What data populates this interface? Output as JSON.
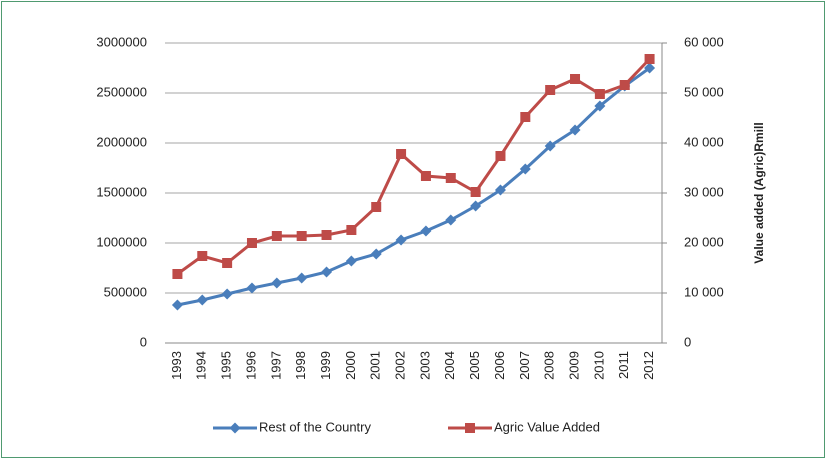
{
  "chart_data": {
    "type": "line",
    "y2label": "Value added (Agric)Rmill",
    "categories": [
      "1993",
      "1994",
      "1995",
      "1996",
      "1997",
      "1998",
      "1999",
      "2000",
      "2001",
      "2002",
      "2003",
      "2004",
      "2005",
      "2006",
      "2007",
      "2008",
      "2009",
      "2010",
      "2011",
      "2012"
    ],
    "series": [
      {
        "name": "Rest of the Country",
        "color": "#4a7ebb",
        "marker": "diamond",
        "values": [
          380000,
          430000,
          490000,
          550000,
          600000,
          650000,
          710000,
          820000,
          890000,
          1030000,
          1120000,
          1230000,
          1370000,
          1530000,
          1740000,
          1970000,
          2130000,
          2370000,
          2570000,
          2750000
        ]
      },
      {
        "name": "Agric Value Added",
        "color": "#be4b48",
        "marker": "square",
        "axis": "y2",
        "values": [
          13800,
          17400,
          16000,
          20000,
          21400,
          21400,
          21600,
          22600,
          27200,
          37800,
          33400,
          33000,
          30200,
          37400,
          45200,
          50600,
          52800,
          49800,
          51600,
          56800
        ]
      }
    ],
    "ylim": [
      0,
      3000000
    ],
    "yticks": [
      0,
      500000,
      1000000,
      1500000,
      2000000,
      2500000,
      3000000
    ],
    "y2lim": [
      0,
      60000
    ],
    "y2ticks": [
      {
        "value": 0,
        "label": "0"
      },
      {
        "value": 10000,
        "label": "10 000"
      },
      {
        "value": 20000,
        "label": "20 000"
      },
      {
        "value": 30000,
        "label": "30 000"
      },
      {
        "value": 40000,
        "label": "40 000"
      },
      {
        "value": 50000,
        "label": "50 000"
      },
      {
        "value": 60000,
        "label": "60 000"
      }
    ],
    "grid": true,
    "legend": "bottom"
  }
}
